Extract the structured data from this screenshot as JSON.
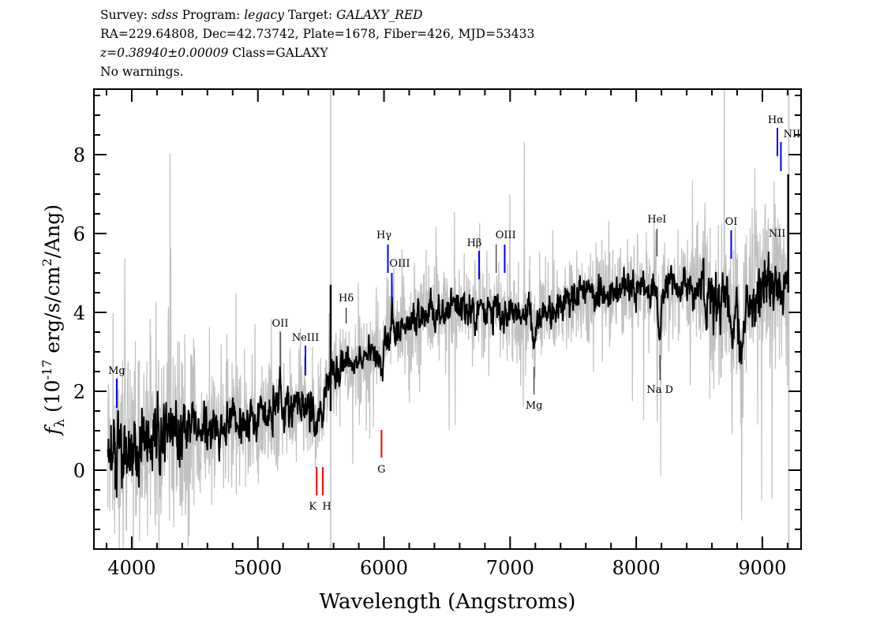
{
  "header": {
    "line1": [
      {
        "text": "Survey: ",
        "italic": false
      },
      {
        "text": "sdss",
        "italic": true
      },
      {
        "text": " Program: ",
        "italic": false
      },
      {
        "text": "legacy",
        "italic": true
      },
      {
        "text": " Target: ",
        "italic": false
      },
      {
        "text": "GALAXY_RED",
        "italic": true
      }
    ],
    "line2": "RA=229.64808, Dec=42.73742, Plate=1678, Fiber=426, MJD=53433",
    "line3": [
      {
        "text": "z=0.38940±0.00009",
        "italic": true
      },
      {
        "text": " Class=GALAXY",
        "italic": false
      }
    ],
    "line4": "No warnings."
  },
  "chart_data": {
    "type": "line",
    "title": "",
    "xlabel": "Wavelength (Angstroms)",
    "ylabel": "f_λ (10^-17 erg/s/cm^2/Ang)",
    "xlim": [
      3700,
      9307
    ],
    "ylim": [
      -2,
      9.66
    ],
    "xticks": [
      4000,
      5000,
      6000,
      7000,
      8000,
      9000
    ],
    "yticks": [
      0,
      2,
      4,
      6,
      8
    ],
    "grid": false,
    "series": [
      {
        "role": "flux (unsmoothed)",
        "color": "#c0c0c0"
      },
      {
        "role": "flux (smoothed)",
        "color": "#000000"
      }
    ],
    "approx_continuum": {
      "x": [
        3810,
        4000,
        4500,
        5000,
        5300,
        5450,
        5550,
        5700,
        5950,
        6050,
        6300,
        6600,
        7000,
        7200,
        7500,
        8000,
        8500,
        8800,
        9000,
        9210
      ],
      "y": [
        0.3,
        0.6,
        1.0,
        1.3,
        1.6,
        1.6,
        2.4,
        2.7,
        3.0,
        3.6,
        3.9,
        4.1,
        4.1,
        3.8,
        4.4,
        4.6,
        4.6,
        4.2,
        4.7,
        4.6
      ]
    },
    "sky_lines": [
      5577,
      9210
    ],
    "line_markers": [
      {
        "label": "Mg",
        "wavelength": 3881,
        "color": "#0000ff"
      },
      {
        "label": "OII",
        "wavelength": 5177,
        "color": "#000000"
      },
      {
        "label": "NeIII",
        "wavelength": 5377,
        "color": "#0000ff"
      },
      {
        "label": "K",
        "wavelength": 5466,
        "color": "#ff0000"
      },
      {
        "label": "H",
        "wavelength": 5515,
        "color": "#ff0000"
      },
      {
        "label": "Hδ",
        "wavelength": 5700,
        "color": "#000000"
      },
      {
        "label": "G",
        "wavelength": 5980,
        "color": "#ff0000"
      },
      {
        "label": "Hγ",
        "wavelength": 6031,
        "color": "#0000ff"
      },
      {
        "label": "OIII",
        "wavelength": 6062,
        "color": "#0000ff"
      },
      {
        "label": "Hβ",
        "wavelength": 6754,
        "color": "#0000ff"
      },
      {
        "label": "OIII",
        "wavelength": 6890,
        "color": "#000000"
      },
      {
        "label": "",
        "wavelength": 6957,
        "color": "#0000ff"
      },
      {
        "label": "Mg",
        "wavelength": 7190,
        "color": "#000000"
      },
      {
        "label": "HeI",
        "wavelength": 8164,
        "color": "#000000"
      },
      {
        "label": "Na D",
        "wavelength": 8188,
        "color": "#000000"
      },
      {
        "label": "OI",
        "wavelength": 8753,
        "color": "#0000ff"
      },
      {
        "label": "NII",
        "wavelength": 9098,
        "color": "#0000ff"
      },
      {
        "label": "Hα",
        "wavelength": 9119,
        "color": "#0000ff"
      },
      {
        "label": "NII",
        "wavelength": 9147,
        "color": "#0000ff"
      }
    ]
  }
}
